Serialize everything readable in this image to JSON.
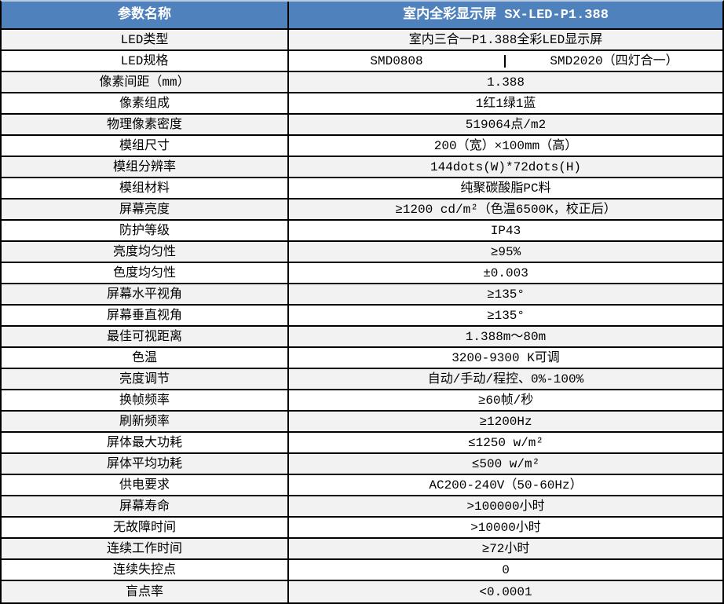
{
  "title": "室内全彩显示屏规格参数表",
  "colors": {
    "header_bg": "#4F81BD",
    "header_text": "#FFFFFF",
    "row_alt_bg": "#F2F2F2",
    "row_bg": "#FFFFFF",
    "border": "#000000",
    "top_border": "#B9CBE3"
  },
  "header": {
    "param_col": "参数名称",
    "value_col": "室内全彩显示屏 SX-LED-P1.388"
  },
  "rows": [
    {
      "label": "LED类型",
      "value": "室内三合一P1.388全彩LED显示屏"
    },
    {
      "label": "LED规格",
      "values": [
        "SMD0808",
        "SMD2020（四灯合一）"
      ]
    },
    {
      "label": "像素间距（mm）",
      "value": "1.388"
    },
    {
      "label": "像素组成",
      "value": "1红1绿1蓝"
    },
    {
      "label": "物理像素密度",
      "value": "519064点/m2"
    },
    {
      "label": "模组尺寸",
      "value": "200（宽）×100mm（高）"
    },
    {
      "label": "模组分辨率",
      "value": "144dots(W)*72dots(H)"
    },
    {
      "label": "模组材料",
      "value": "纯聚碳酸脂PC料"
    },
    {
      "label": "屏幕亮度",
      "value": "≥1200 cd/m²（色温6500K，校正后）"
    },
    {
      "label": "防护等级",
      "value": "IP43"
    },
    {
      "label": "亮度均匀性",
      "value": "≥95%"
    },
    {
      "label": "色度均匀性",
      "value": "±0.003"
    },
    {
      "label": "屏幕水平视角",
      "value": "≥135°"
    },
    {
      "label": "屏幕垂直视角",
      "value": "≥135°"
    },
    {
      "label": "最佳可视距离",
      "value": "1.388m～80m"
    },
    {
      "label": "色温",
      "value": "3200-9300 K可调"
    },
    {
      "label": "亮度调节",
      "value": "自动/手动/程控、0%-100%"
    },
    {
      "label": "换帧频率",
      "value": "≥60帧/秒"
    },
    {
      "label": "刷新频率",
      "value": "≥1200Hz"
    },
    {
      "label": "屏体最大功耗",
      "value": "≤1250 w/m²"
    },
    {
      "label": "屏体平均功耗",
      "value": "≤500 w/m²"
    },
    {
      "label": "供电要求",
      "value": "AC200-240V（50-60Hz）"
    },
    {
      "label": "屏幕寿命",
      "value": ">100000小时"
    },
    {
      "label": "无故障时间",
      "value": ">10000小时"
    },
    {
      "label": "连续工作时间",
      "value": "≥72小时"
    },
    {
      "label": "连续失控点",
      "value": "0"
    },
    {
      "label": "盲点率",
      "value": "<0.0001"
    }
  ]
}
